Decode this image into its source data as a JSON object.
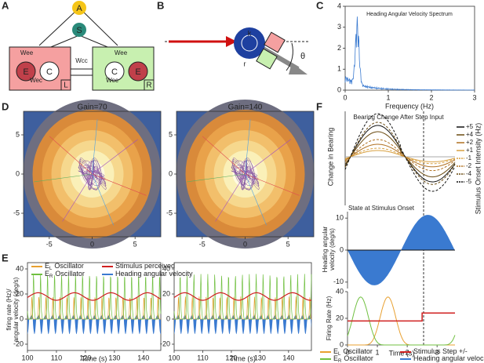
{
  "panels": {
    "A": {
      "letter": "A",
      "nodes": [
        "A",
        "S",
        "E",
        "C",
        "C",
        "E"
      ],
      "weights": [
        "Wee",
        "Wec",
        "Wcc",
        "Wee",
        "Wec"
      ],
      "sides": [
        "L",
        "R"
      ]
    },
    "B": {
      "letter": "B",
      "labels": [
        "k",
        "r",
        "θ"
      ]
    },
    "C": {
      "letter": "C",
      "title": "Heading Angular Velocity Spectrum",
      "xlabel": "Frequency (Hz)",
      "xlim": [
        0,
        3
      ],
      "ylim": [
        0,
        4
      ],
      "xticks": [
        0,
        1,
        2,
        3
      ],
      "yticks": [
        0,
        1,
        2,
        3,
        4
      ]
    },
    "D": {
      "letter": "D",
      "titles": [
        "Gain=70",
        "Gain=140"
      ],
      "xlim": [
        -8,
        8
      ],
      "ylim": [
        -8,
        8
      ],
      "xticks": [
        -5,
        0,
        5
      ],
      "yticks": [
        5,
        0,
        -5
      ]
    },
    "E": {
      "letter": "E",
      "ylabel": [
        "firing rate (Hz)/",
        "angular velocity (deg/s)"
      ],
      "xlabel": "Time (s)",
      "ylim": [
        -25,
        45
      ],
      "yticks": [
        -20,
        0,
        20,
        40
      ],
      "xlim_left": [
        100,
        146
      ],
      "xlim_right": [
        100,
        148
      ],
      "xticks_left": [
        100,
        110,
        120,
        130,
        140
      ],
      "xticks_right": [
        100,
        110,
        120,
        130,
        140
      ],
      "legend": [
        {
          "sym": "E",
          "sub": "L",
          "text": "Oscillator"
        },
        {
          "sym": "E",
          "sub": "R",
          "text": "Oscillator"
        },
        {
          "text": "Stimulus perceived"
        },
        {
          "text": "Heading angular velocity"
        }
      ]
    },
    "F": {
      "letter": "F",
      "top_title": "Bearing Change After Step Input",
      "top_ylabel": "Change in Bearing",
      "intensity_label": "Stimulus Onset Intensity (Hz)",
      "intensities": [
        "+5",
        "+4",
        "+2",
        "+1",
        "-1",
        "-2",
        "-4",
        "-5"
      ],
      "mid_title": "State at Stimulus Onset",
      "mid_ylabel": [
        "Heading angular",
        "velocity (deg/s)"
      ],
      "mid_ylim": [
        -12,
        12
      ],
      "mid_yticks": [
        10,
        0,
        -10
      ],
      "bot_ylabel": "Firing Rate (Hz)",
      "bot_ylim": [
        0,
        40
      ],
      "bot_yticks": [
        0,
        20,
        40
      ],
      "xlim": [
        0,
        3.6
      ],
      "xticks": [
        0,
        1,
        2,
        3
      ],
      "xlabel": "Time (s)",
      "legend": [
        {
          "sym": "E",
          "sub": "L",
          "text": "Oscillator"
        },
        {
          "sym": "E",
          "sub": "R",
          "text": "Oscillator"
        },
        {
          "text": "Stimulus Step +/-"
        },
        {
          "text": "Heading angular velocity"
        }
      ]
    }
  }
}
